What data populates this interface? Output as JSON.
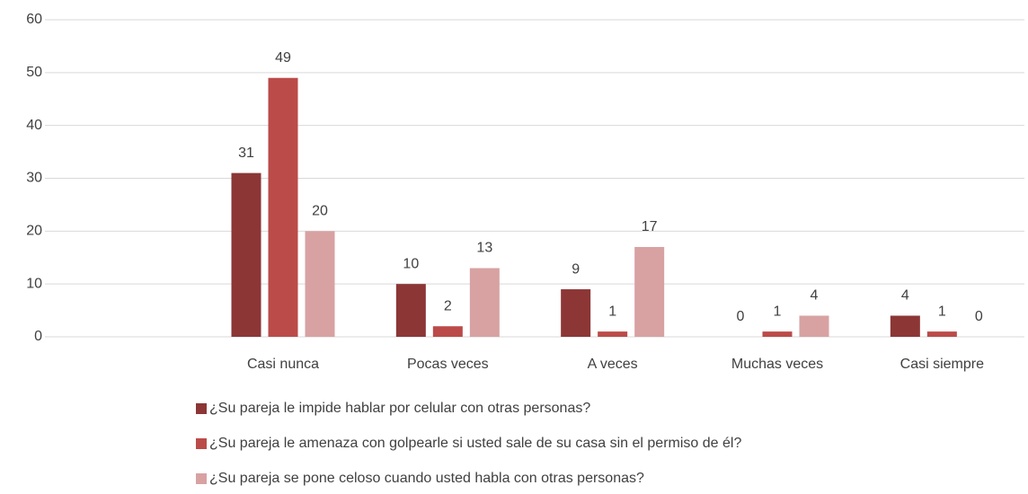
{
  "chart_data": {
    "type": "bar",
    "categories": [
      null,
      "Casi nunca",
      "Pocas veces",
      "A veces",
      "Muchas veces",
      "Casi siempre"
    ],
    "series": [
      {
        "name": "¿Su pareja le impide hablar por celular con otras personas?",
        "color": "#8c3636",
        "values": [
          null,
          31,
          10,
          9,
          0,
          4
        ]
      },
      {
        "name": "¿Su pareja le amenaza con golpearle si usted sale de su casa sin el permiso de él?",
        "color": "#bb4b49",
        "values": [
          null,
          49,
          2,
          1,
          1,
          1
        ]
      },
      {
        "name": "¿Su pareja se pone celoso cuando usted habla con otras personas?",
        "color": "#d8a2a2",
        "values": [
          null,
          20,
          13,
          17,
          4,
          0
        ]
      }
    ],
    "ylim": [
      0,
      60
    ],
    "yticks": [
      0,
      10,
      20,
      30,
      40,
      50,
      60
    ],
    "grid": true
  }
}
